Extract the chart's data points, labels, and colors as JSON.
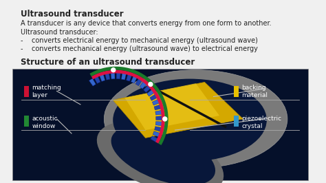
{
  "title_text": "Ultrasound transducer",
  "paragraph1": "A transducer is any device that converts energy from one form to another.",
  "paragraph2": "Ultrasound transducer:",
  "bullet1": "-    converts electrical energy to mechanical energy (ultrasound wave)",
  "bullet2": "-    converts mechanical energy (ultrasound wave) to electrical energy",
  "section_title": "Structure of an ultrasound transducer",
  "labels": {
    "matching_layer": "matching\nlayer",
    "backing_material": "backing\nmaterial",
    "acoustic_window": "acoustic\nwindow",
    "piezoelectric_crystal": "piezoelectric\ncrystal"
  },
  "label_colors": {
    "matching_layer": "#cc1133",
    "backing_material": "#e8c000",
    "acoustic_window": "#228833",
    "piezoelectric_crystal": "#3399cc"
  },
  "bg_color": "#f0f0f0",
  "bg_color_diagram": "#05102a",
  "text_color": "#222222",
  "diagram_label_color": "#ffffff",
  "title_fontsize": 8.5,
  "body_fontsize": 7,
  "section_fontsize": 8.5,
  "diag_label_fontsize": 6.5
}
